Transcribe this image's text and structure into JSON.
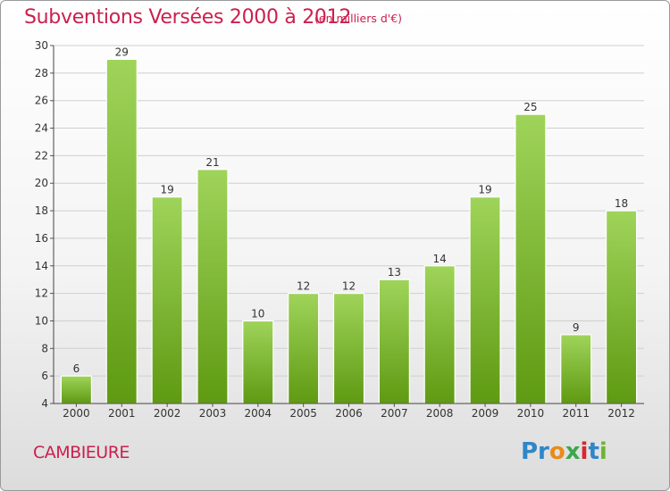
{
  "header": {
    "title": "Subventions Versées 2000 à 2012",
    "unit": "(en milliers d'€)"
  },
  "footer": {
    "commune": "CAMBIEURE",
    "logo": [
      "Pr",
      "o",
      "x",
      "i",
      "t",
      "i"
    ]
  },
  "colors": {
    "accent": "#cc1f4e",
    "bar_light": "#9fd45a",
    "bar_dark": "#5f9a12",
    "grid": "#cfcfcf"
  },
  "chart_data": {
    "type": "bar",
    "title": "Subventions Versées 2000 à 2012",
    "ylabel": "",
    "xlabel": "",
    "categories": [
      "2000",
      "2001",
      "2002",
      "2003",
      "2004",
      "2005",
      "2006",
      "2007",
      "2008",
      "2009",
      "2010",
      "2011",
      "2012"
    ],
    "values": [
      6,
      29,
      19,
      21,
      10,
      12,
      12,
      13,
      14,
      19,
      25,
      9,
      18
    ],
    "ylim": [
      4,
      30
    ],
    "yticks": [
      4,
      6,
      8,
      10,
      12,
      14,
      16,
      18,
      20,
      22,
      24,
      26,
      28,
      30
    ],
    "grid": true
  }
}
